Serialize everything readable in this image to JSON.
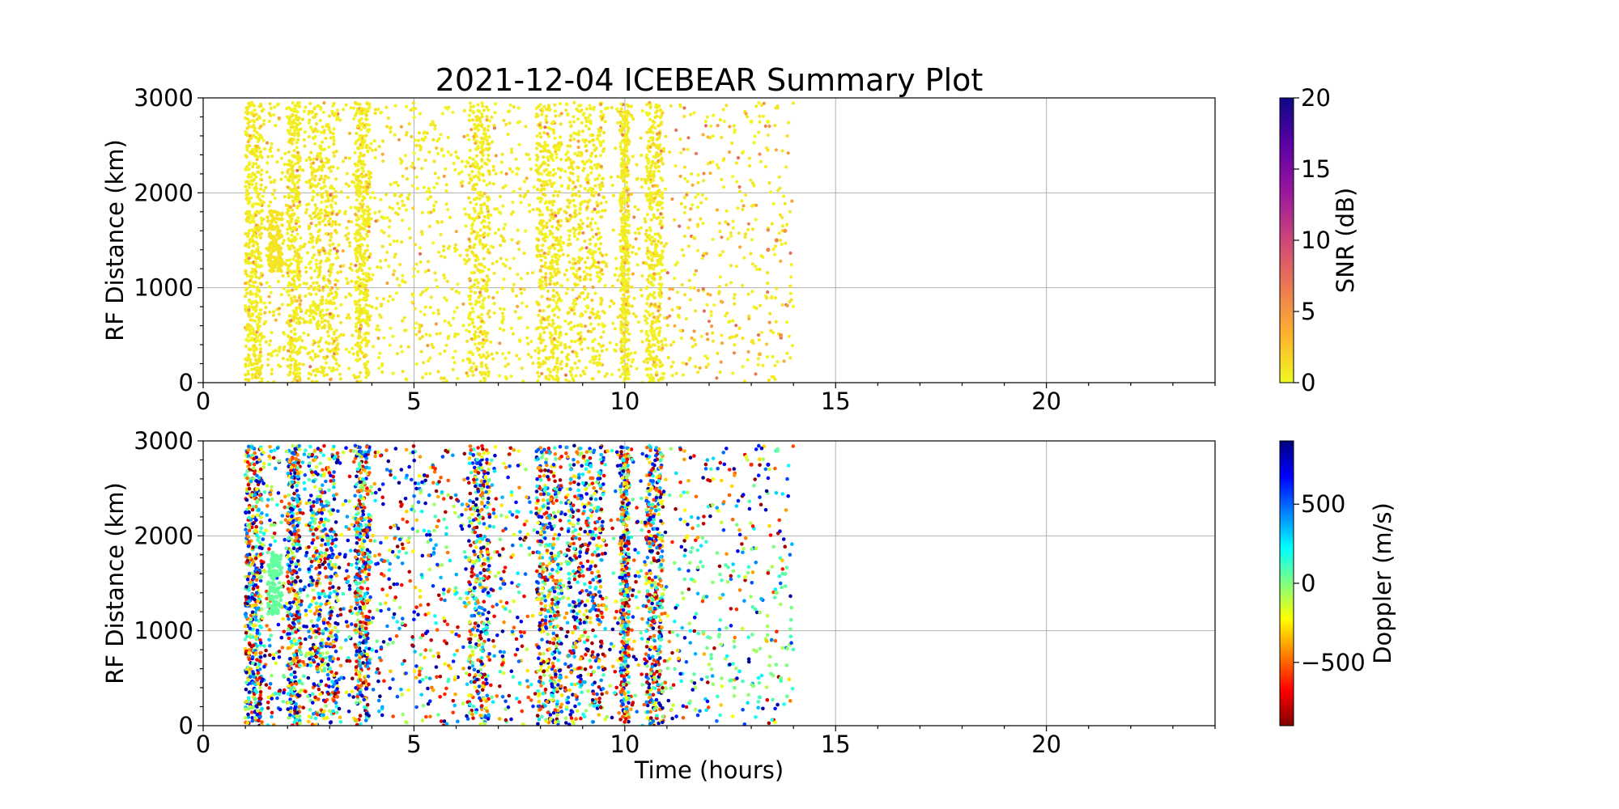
{
  "chart_data": [
    {
      "type": "scatter",
      "title": "2021-12-04 ICEBEAR Summary Plot",
      "xlabel": "",
      "ylabel": "RF Distance (km)",
      "xlim": [
        0,
        24
      ],
      "ylim": [
        0,
        3000
      ],
      "xticks": [
        "0",
        "5",
        "10",
        "15",
        "20"
      ],
      "yticks": [
        "0",
        "1000",
        "2000",
        "3000"
      ],
      "grid": true,
      "colorbar": {
        "label": "SNR (dB)",
        "range": [
          0,
          20
        ],
        "ticks": [
          "0",
          "5",
          "10",
          "15",
          "20"
        ],
        "colormap": "plasma_r",
        "colors": [
          "#f0f921",
          "#fdb32f",
          "#ed7953",
          "#cc4778",
          "#9c179e",
          "#5c01a6",
          "#0d0887"
        ]
      },
      "series": [
        {
          "description_of_values": "detections (time hours, range km, snr dB)",
          "x_range": [
            1.0,
            14.0
          ],
          "y_range": [
            0,
            2950
          ],
          "value_range": [
            0,
            8
          ],
          "dense_bands_hours": [
            [
              1.0,
              1.4
            ],
            [
              2.0,
              2.3
            ],
            [
              2.5,
              3.2
            ],
            [
              3.6,
              3.95
            ],
            [
              6.3,
              6.8
            ],
            [
              7.9,
              8.5
            ],
            [
              8.6,
              9.5
            ],
            [
              9.9,
              10.1
            ],
            [
              10.5,
              10.9
            ]
          ],
          "clusters": [
            {
              "x": 1.7,
              "y": 1500,
              "value": 1
            }
          ],
          "edge_points": [
            {
              "x": 13.0,
              "y": 2750,
              "value": 0
            },
            {
              "x": 13.4,
              "y": 2750,
              "value": 0
            },
            {
              "x": 13.4,
              "y": 1400,
              "value": 6
            },
            {
              "x": 13.6,
              "y": 1500,
              "value": 6
            },
            {
              "x": 13.8,
              "y": 1600,
              "value": 5
            },
            {
              "x": 13.7,
              "y": 500,
              "value": 5
            },
            {
              "x": 13.2,
              "y": 300,
              "value": 3
            }
          ]
        }
      ]
    },
    {
      "type": "scatter",
      "title": "",
      "xlabel": "Time (hours)",
      "ylabel": "RF Distance (km)",
      "xlim": [
        0,
        24
      ],
      "ylim": [
        0,
        3000
      ],
      "xticks": [
        "0",
        "5",
        "10",
        "15",
        "20"
      ],
      "yticks": [
        "0",
        "1000",
        "2000",
        "3000"
      ],
      "grid": true,
      "colorbar": {
        "label": "Doppler (m/s)",
        "range": [
          -900,
          900
        ],
        "ticks": [
          "−500",
          "0",
          "500"
        ],
        "tick_values": [
          -500,
          0,
          500
        ],
        "colormap": "jet_r",
        "colors": [
          "#800000",
          "#ff0000",
          "#ff8000",
          "#ffff00",
          "#80ff80",
          "#00ffff",
          "#0080ff",
          "#0000ff",
          "#000080"
        ]
      },
      "series": [
        {
          "description_of_values": "detections (time hours, range km, doppler m/s)",
          "x_range": [
            1.0,
            14.0
          ],
          "y_range": [
            0,
            2950
          ],
          "value_range": [
            -900,
            900
          ],
          "dense_bands_hours": [
            [
              1.0,
              1.4
            ],
            [
              2.0,
              2.3
            ],
            [
              2.5,
              3.2
            ],
            [
              3.6,
              3.95
            ],
            [
              6.3,
              6.8
            ],
            [
              7.9,
              8.5
            ],
            [
              8.6,
              9.5
            ],
            [
              9.9,
              10.1
            ],
            [
              10.5,
              10.9
            ]
          ],
          "clusters": [
            {
              "x": 1.7,
              "y": 1500,
              "value": 50
            }
          ],
          "late_low_doppler_region": {
            "x_range": [
              11.5,
              14.0
            ],
            "y_range": [
              300,
              1900
            ],
            "value": 0
          },
          "edge_points": [
            {
              "x": 13.0,
              "y": 2750,
              "value": -600
            },
            {
              "x": 13.4,
              "y": 2750,
              "value": 700
            },
            {
              "x": 13.6,
              "y": 1400,
              "value": 0
            },
            {
              "x": 13.8,
              "y": 1600,
              "value": 50
            },
            {
              "x": 13.7,
              "y": 500,
              "value": 0
            },
            {
              "x": 13.2,
              "y": 300,
              "value": 100
            }
          ]
        }
      ]
    }
  ]
}
